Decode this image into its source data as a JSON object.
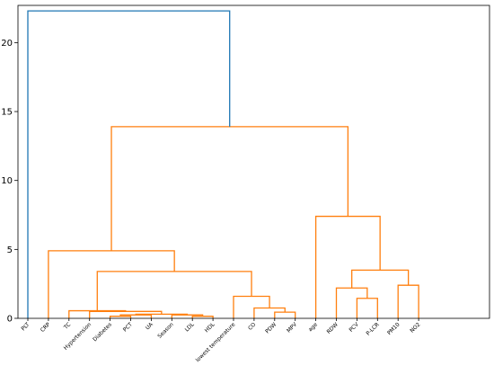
{
  "chart_data": {
    "type": "dendrogram",
    "leaves": [
      "PLT",
      "CRP",
      "TC",
      "Hypertension",
      "Diabetes",
      "PCT",
      "UA",
      "Season",
      "LDL",
      "HDL",
      "lowest temperature",
      "CO",
      "PDW",
      "MPV",
      "age",
      "RDW",
      "PCV",
      "P-LCR",
      "PM10",
      "NO2"
    ],
    "y_ticks": [
      0,
      5,
      10,
      15,
      20
    ],
    "ylim": [
      0,
      22.7
    ],
    "merges": [
      {
        "left": 8,
        "right": 9,
        "height": 0.15,
        "color": "#ff7f0e"
      },
      {
        "left": 7,
        "right": 20,
        "height": 0.25,
        "color": "#ff7f0e"
      },
      {
        "left": 4,
        "right": 5,
        "height": 0.15,
        "color": "#ff7f0e"
      },
      {
        "left": 22,
        "right": 6,
        "height": 0.25,
        "color": "#ff7f0e"
      },
      {
        "left": 23,
        "right": 21,
        "height": 0.3,
        "color": "#ff7f0e"
      },
      {
        "left": 3,
        "right": 24,
        "height": 0.5,
        "color": "#ff7f0e"
      },
      {
        "left": 12,
        "right": 13,
        "height": 0.45,
        "color": "#ff7f0e"
      },
      {
        "left": 11,
        "right": 26,
        "height": 0.75,
        "color": "#ff7f0e"
      },
      {
        "left": 10,
        "right": 27,
        "height": 1.6,
        "color": "#ff7f0e"
      },
      {
        "left": 2,
        "right": 25,
        "height": 0.55,
        "color": "#ff7f0e"
      },
      {
        "left": 29,
        "right": 28,
        "height": 3.4,
        "color": "#ff7f0e"
      },
      {
        "left": 1,
        "right": 30,
        "height": 4.9,
        "color": "#ff7f0e"
      },
      {
        "left": 16,
        "right": 17,
        "height": 1.45,
        "color": "#ff7f0e"
      },
      {
        "left": 15,
        "right": 32,
        "height": 2.2,
        "color": "#ff7f0e"
      },
      {
        "left": 18,
        "right": 19,
        "height": 2.4,
        "color": "#ff7f0e"
      },
      {
        "left": 33,
        "right": 34,
        "height": 3.5,
        "color": "#ff7f0e"
      },
      {
        "left": 14,
        "right": 35,
        "height": 7.4,
        "color": "#ff7f0e"
      },
      {
        "left": 31,
        "right": 36,
        "height": 13.9,
        "color": "#ff7f0e"
      },
      {
        "left": 0,
        "right": 37,
        "height": 22.3,
        "color": "#1f77b4"
      }
    ]
  }
}
